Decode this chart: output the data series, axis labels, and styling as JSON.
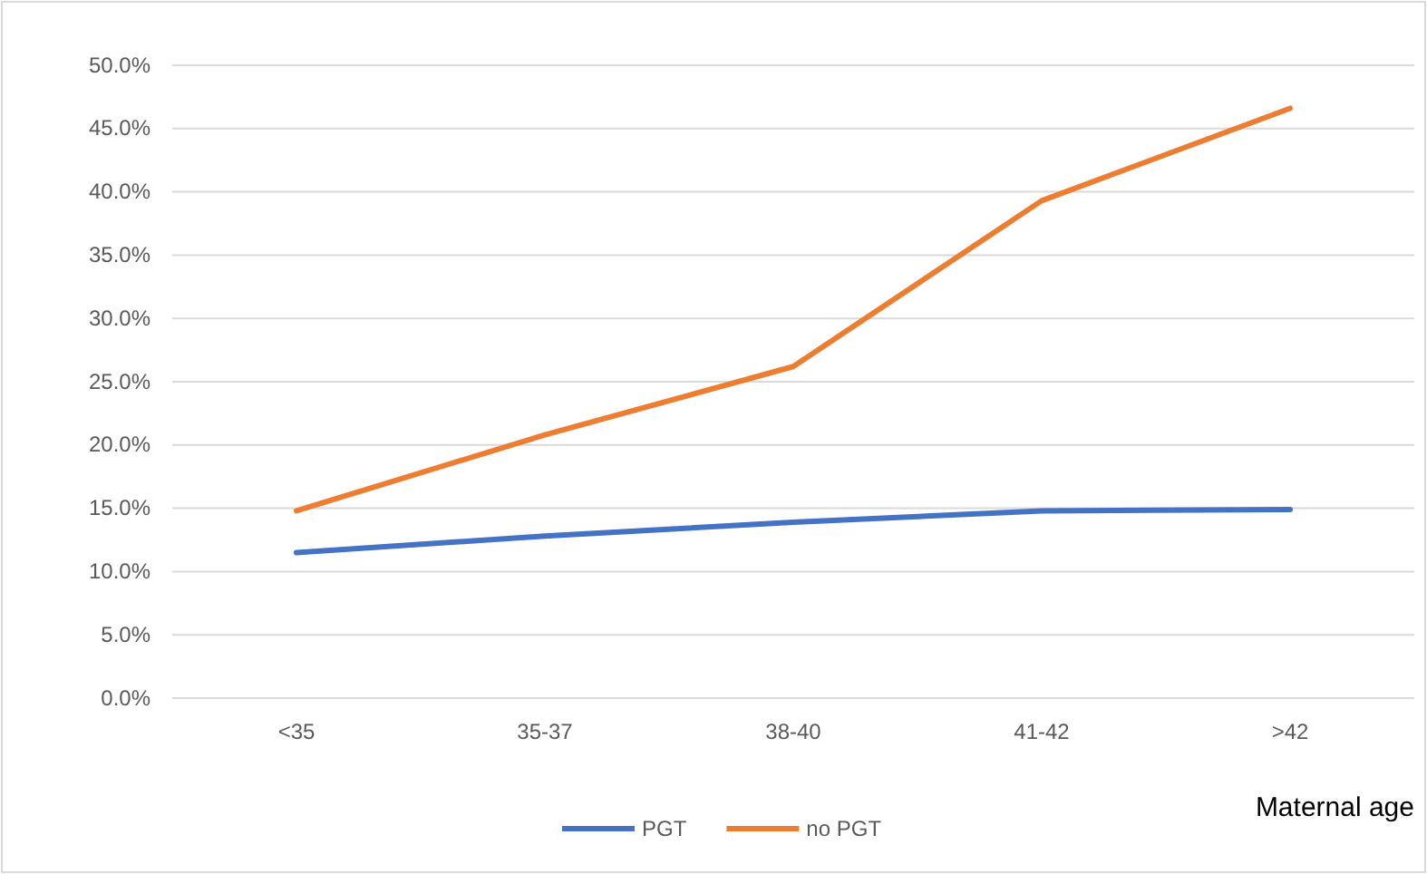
{
  "chart_data": {
    "type": "line",
    "xlabel": "Maternal age",
    "categories": [
      "<35",
      "35-37",
      "38-40",
      "41-42",
      ">42"
    ],
    "series": [
      {
        "name": "PGT",
        "color": "#4472c4",
        "values": [
          11.5,
          12.8,
          13.9,
          14.8,
          14.9
        ]
      },
      {
        "name": "no PGT",
        "color": "#ed7d31",
        "values": [
          14.8,
          20.8,
          26.2,
          39.3,
          46.6
        ]
      }
    ],
    "ylim": [
      0,
      50
    ],
    "yticks": [
      {
        "value": 0,
        "label": "0.0%"
      },
      {
        "value": 5,
        "label": "5.0%"
      },
      {
        "value": 10,
        "label": "10.0%"
      },
      {
        "value": 15,
        "label": "15.0%"
      },
      {
        "value": 20,
        "label": "20.0%"
      },
      {
        "value": 25,
        "label": "25.0%"
      },
      {
        "value": 30,
        "label": "30.0%"
      },
      {
        "value": 35,
        "label": "35.0%"
      },
      {
        "value": 40,
        "label": "40.0%"
      },
      {
        "value": 45,
        "label": "45.0%"
      },
      {
        "value": 50,
        "label": "50.0%"
      }
    ],
    "grid": "y",
    "legend": "bottom",
    "marker": "none",
    "line_style": "solid"
  }
}
